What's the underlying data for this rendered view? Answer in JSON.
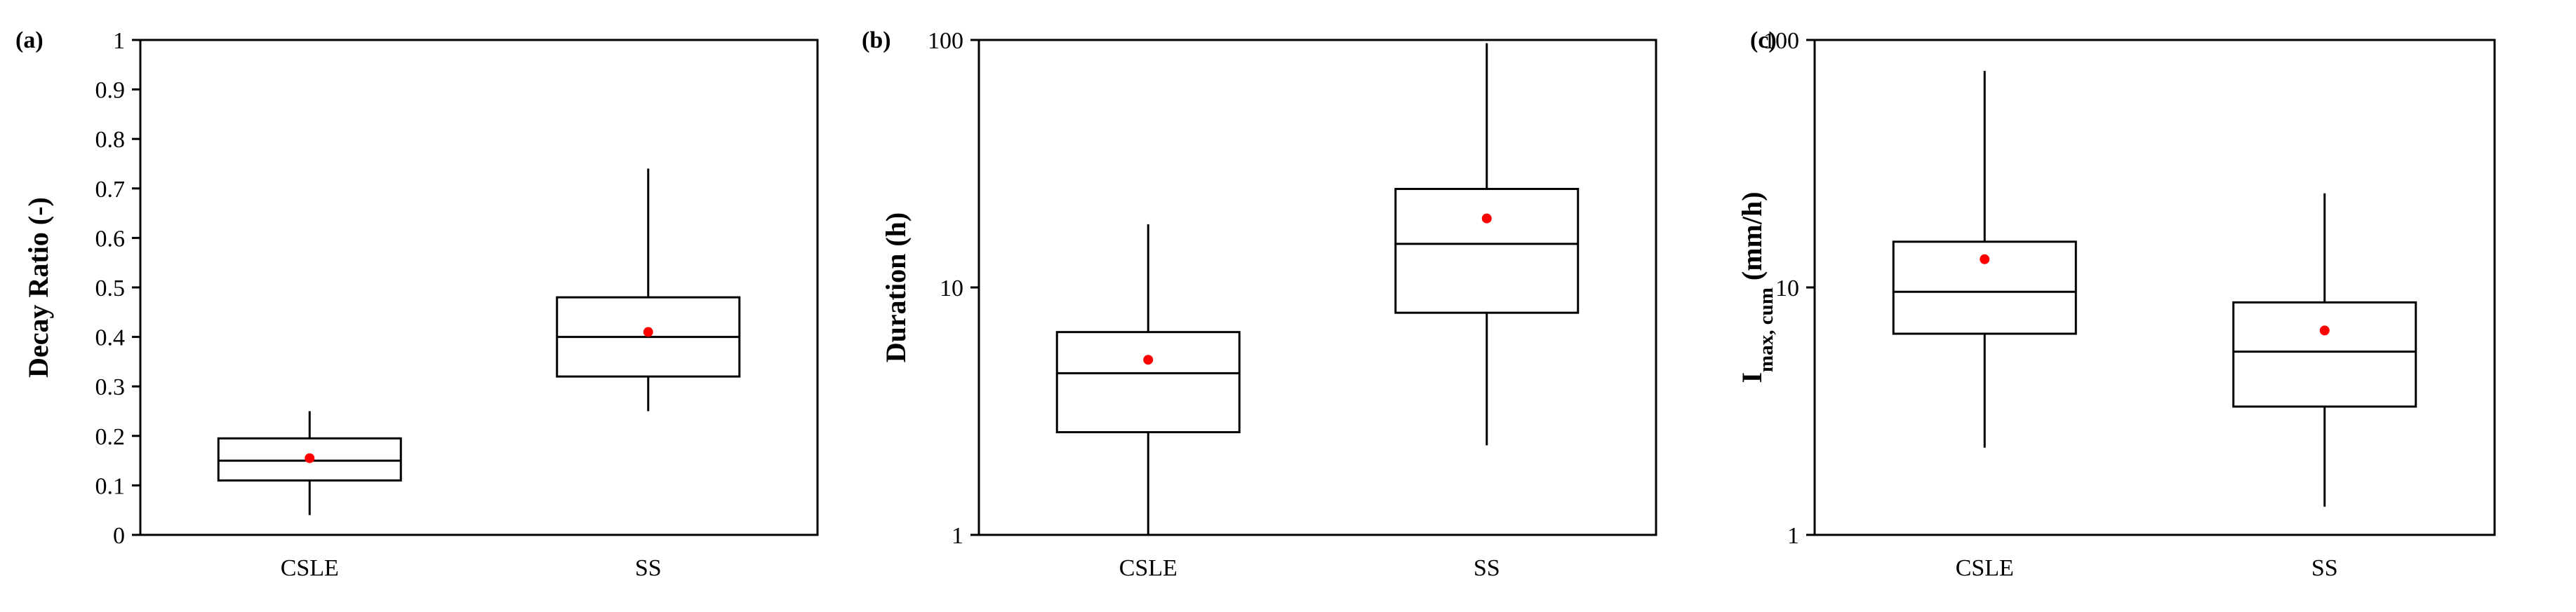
{
  "chart_data": [
    {
      "panel": "(a)",
      "type": "box",
      "ylabel": "Decay Ratio (-)",
      "yscale": "linear",
      "ylim": [
        0,
        1
      ],
      "yticks": [
        0,
        0.1,
        0.2,
        0.3,
        0.4,
        0.5,
        0.6,
        0.7,
        0.8,
        0.9,
        1
      ],
      "ytick_labels": [
        "0",
        "0.1",
        "0.2",
        "0.3",
        "0.4",
        "0.5",
        "0.6",
        "0.7",
        "0.8",
        "0.9",
        "1"
      ],
      "categories": [
        "CSLE",
        "SS"
      ],
      "boxes": [
        {
          "category": "CSLE",
          "whisker_low": 0.04,
          "q1": 0.11,
          "median": 0.15,
          "q3": 0.195,
          "whisker_high": 0.25,
          "mean": 0.155
        },
        {
          "category": "SS",
          "whisker_low": 0.25,
          "q1": 0.32,
          "median": 0.4,
          "q3": 0.48,
          "whisker_high": 0.74,
          "mean": 0.41
        }
      ],
      "mean_marker_color": "#ff0000"
    },
    {
      "panel": "(b)",
      "type": "box",
      "ylabel": "Duration (h)",
      "yscale": "log",
      "ylim": [
        1,
        100
      ],
      "yticks": [
        1,
        10,
        100
      ],
      "ytick_labels": [
        "1",
        "10",
        "100"
      ],
      "categories": [
        "CSLE",
        "SS"
      ],
      "boxes": [
        {
          "category": "CSLE",
          "whisker_low": 1.0,
          "q1": 2.6,
          "median": 4.5,
          "q3": 6.6,
          "whisker_high": 18.0,
          "mean": 5.1
        },
        {
          "category": "SS",
          "whisker_low": 2.3,
          "q1": 7.9,
          "median": 15.0,
          "q3": 25.0,
          "whisker_high": 97.0,
          "mean": 19.0
        }
      ],
      "mean_marker_color": "#ff0000"
    },
    {
      "panel": "(c)",
      "type": "box",
      "ylabel": "I",
      "ylabel_sub": "max, cum",
      "ylabel_suffix": " (mm/h)",
      "yscale": "log",
      "ylim": [
        1,
        100
      ],
      "yticks": [
        1,
        10,
        100
      ],
      "ytick_labels": [
        "1",
        "10",
        "100"
      ],
      "categories": [
        "CSLE",
        "SS"
      ],
      "boxes": [
        {
          "category": "CSLE",
          "whisker_low": 2.25,
          "q1": 6.5,
          "median": 9.6,
          "q3": 15.3,
          "whisker_high": 75.0,
          "mean": 13.0
        },
        {
          "category": "SS",
          "whisker_low": 1.3,
          "q1": 3.3,
          "median": 5.5,
          "q3": 8.7,
          "whisker_high": 24.0,
          "mean": 6.7
        }
      ],
      "mean_marker_color": "#ff0000"
    }
  ]
}
